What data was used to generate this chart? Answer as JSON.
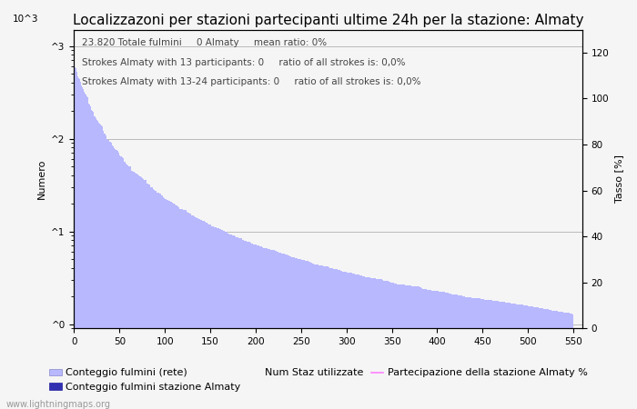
{
  "title": "Localizzazoni per stazioni partecipanti ultime 24h per la stazione: Almaty",
  "xlabel": "",
  "ylabel_left": "Numero",
  "ylabel_right": "Tasso [%]",
  "annotation_lines": [
    "23.820 Totale fulmini     0 Almaty     mean ratio: 0%",
    "Strokes Almaty with 13 participants: 0     ratio of all strokes is: 0,0%",
    "Strokes Almaty with 13-24 participants: 0     ratio of all strokes is: 0,0%"
  ],
  "xlim": [
    0,
    560
  ],
  "ylim_right": [
    0,
    130
  ],
  "right_ticks": [
    0,
    20,
    40,
    60,
    80,
    100,
    120
  ],
  "bar_color_light": "#b8b8ff",
  "bar_color_dark": "#3030b0",
  "line_color": "#ff80ff",
  "legend_labels": [
    "Conteggio fulmini (rete)",
    "Conteggio fulmini stazione Almaty",
    "Num Staz utilizzate",
    "Partecipazione della stazione Almaty %"
  ],
  "footer": "www.lightningmaps.org",
  "background_color": "#f5f5f5",
  "grid_color": "#bbbbbb",
  "title_fontsize": 11,
  "annotation_fontsize": 7.5,
  "axis_label_fontsize": 8,
  "tick_fontsize": 7.5,
  "legend_fontsize": 8
}
